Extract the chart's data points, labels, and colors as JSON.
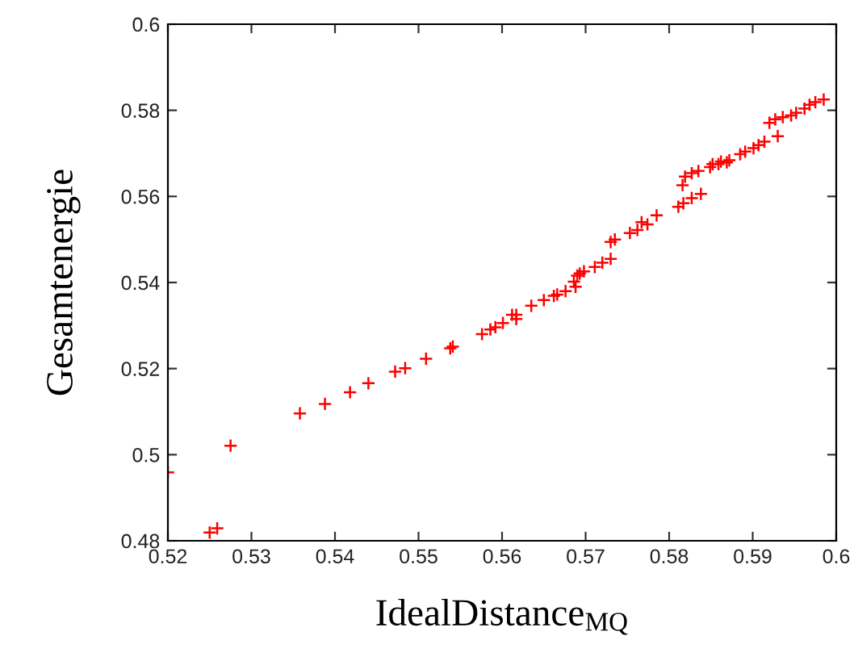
{
  "chart_data": {
    "type": "scatter",
    "xlabel": "IdealDistance$_{MQ}$",
    "ylabel": "Gesamtenergie",
    "marker": "cross",
    "grid": false,
    "xlim": [
      0.52,
      0.6
    ],
    "xticks": [
      0.52,
      0.53,
      0.54,
      0.55,
      0.56,
      0.57,
      0.58,
      0.59,
      0.6
    ],
    "ylim": [
      0.48,
      0.6
    ],
    "yticks": [
      0.48,
      0.5,
      0.52,
      0.54,
      0.56,
      0.58,
      0.6
    ],
    "series": [
      {
        "color": "#ff0000",
        "x": [
          0.52,
          0.525,
          0.5259,
          0.5275,
          0.5358,
          0.5388,
          0.5418,
          0.544,
          0.5472,
          0.5484,
          0.5509,
          0.5538,
          0.5541,
          0.5576,
          0.5586,
          0.5592,
          0.5601,
          0.5612,
          0.5617,
          0.5617,
          0.5635,
          0.565,
          0.5662,
          0.5666,
          0.5676,
          0.5686,
          0.5688,
          0.569,
          0.5693,
          0.5698,
          0.5711,
          0.572,
          0.573,
          0.573,
          0.5735,
          0.5753,
          0.5762,
          0.5767,
          0.5774,
          0.5785,
          0.5811,
          0.5817,
          0.5827,
          0.5838,
          0.5816,
          0.5819,
          0.5827,
          0.5835,
          0.5849,
          0.5859,
          0.5869,
          0.5852,
          0.5862,
          0.5872,
          0.5885,
          0.5891,
          0.5901,
          0.5907,
          0.5914,
          0.593,
          0.592,
          0.5927,
          0.5936,
          0.5946,
          0.5952,
          0.5962,
          0.5968,
          0.5975,
          0.5985
        ],
        "values": [
          0.4959,
          0.4819,
          0.4829,
          0.5021,
          0.5096,
          0.5118,
          0.5145,
          0.5166,
          0.5193,
          0.5201,
          0.5223,
          0.5247,
          0.5251,
          0.528,
          0.5291,
          0.5296,
          0.5306,
          0.5325,
          0.5325,
          0.5315,
          0.5346,
          0.5359,
          0.5369,
          0.5372,
          0.538,
          0.5402,
          0.539,
          0.5416,
          0.5421,
          0.5426,
          0.5436,
          0.5446,
          0.5455,
          0.5494,
          0.55,
          0.5515,
          0.5522,
          0.554,
          0.5535,
          0.5556,
          0.5576,
          0.5584,
          0.5596,
          0.5606,
          0.5626,
          0.5646,
          0.5654,
          0.5659,
          0.5668,
          0.5675,
          0.5679,
          0.5675,
          0.5681,
          0.5684,
          0.5698,
          0.5704,
          0.5712,
          0.5719,
          0.5727,
          0.574,
          0.5771,
          0.5779,
          0.5784,
          0.5788,
          0.5794,
          0.5804,
          0.5813,
          0.5819,
          0.5825
        ]
      }
    ]
  }
}
